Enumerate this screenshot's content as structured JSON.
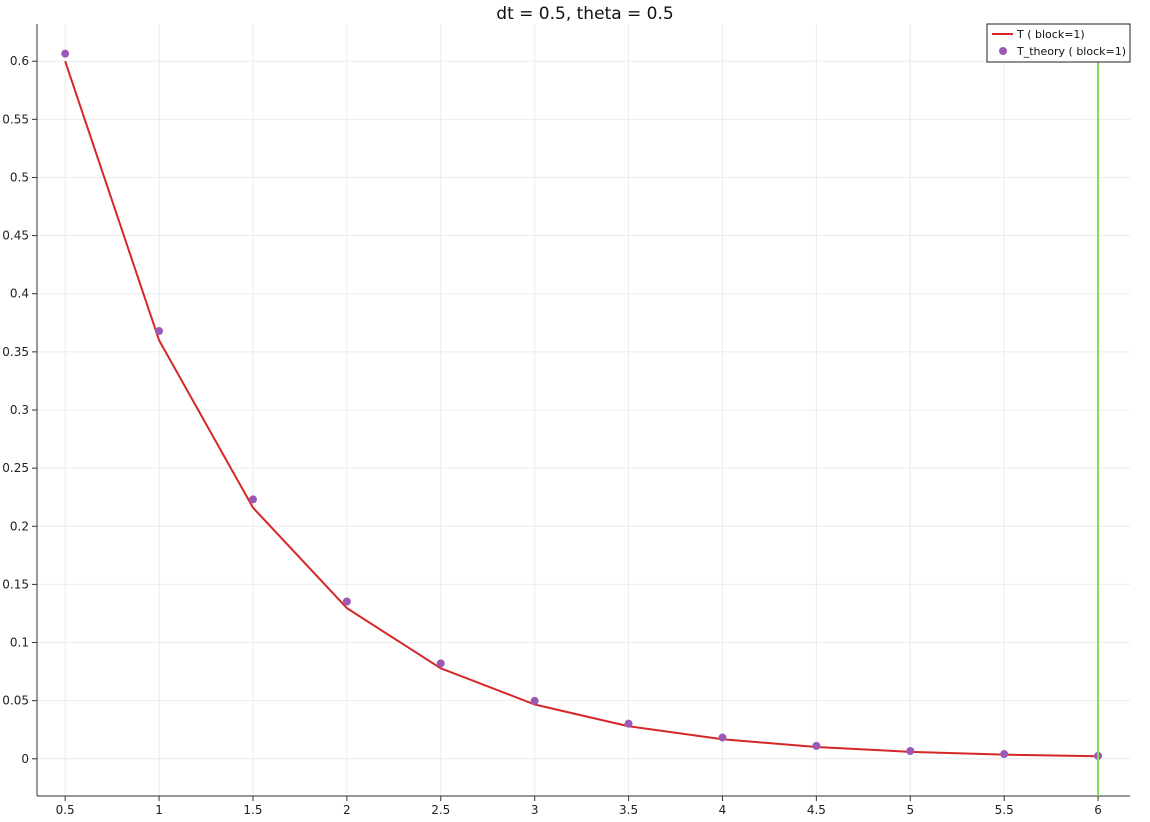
{
  "chart_data": {
    "type": "line",
    "title": "dt = 0.5, theta = 0.5",
    "xlabel": "",
    "ylabel": "",
    "xlim": [
      0.35,
      6.17
    ],
    "ylim": [
      -0.032,
      0.632
    ],
    "x_ticks": [
      "0.5",
      "1",
      "1.5",
      "2",
      "2.5",
      "3",
      "3.5",
      "4",
      "4.5",
      "5",
      "5.5",
      "6"
    ],
    "y_ticks": [
      "0",
      "0.05",
      "0.1",
      "0.15",
      "0.2",
      "0.25",
      "0.3",
      "0.35",
      "0.4",
      "0.45",
      "0.5",
      "0.55",
      "0.6"
    ],
    "grid": true,
    "legend_position": "top-right",
    "series": [
      {
        "name": "T ( block=1)",
        "kind": "line",
        "color": "#d62728",
        "x": [
          0.5,
          1,
          1.5,
          2,
          2.5,
          3,
          3.5,
          4,
          4.5,
          5,
          5.5,
          6
        ],
        "y": [
          0.6,
          0.36,
          0.216,
          0.1296,
          0.0778,
          0.0467,
          0.028,
          0.0168,
          0.0101,
          0.006,
          0.0036,
          0.0022
        ]
      },
      {
        "name": "T_theory ( block=1)",
        "kind": "scatter",
        "color": "#9b59b6",
        "x": [
          0.5,
          1,
          1.5,
          2,
          2.5,
          3,
          3.5,
          4,
          4.5,
          5,
          5.5,
          6
        ],
        "y": [
          0.6065,
          0.3679,
          0.2231,
          0.1353,
          0.0821,
          0.0498,
          0.0302,
          0.0183,
          0.0111,
          0.0067,
          0.0041,
          0.0025
        ]
      }
    ],
    "vertical_marker": {
      "x": 6,
      "color": "#7ed957"
    }
  }
}
